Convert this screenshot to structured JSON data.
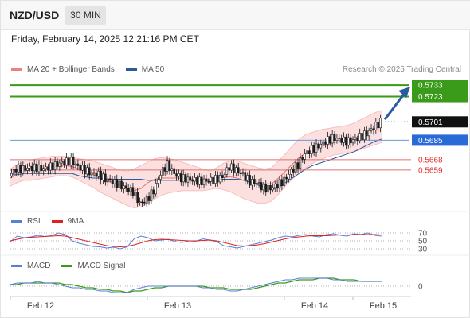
{
  "header": {
    "symbol": "NZD/USD",
    "timeframe": "30 MIN",
    "datetime": "Friday, February 14, 2025 12:21:16 PM CET",
    "credit": "Research © 2025 Trading Central"
  },
  "legends": {
    "main": [
      {
        "label": "MA 20 + Bollinger Bands",
        "color": "#f08080"
      },
      {
        "label": "MA 50",
        "color": "#2a5a9a"
      }
    ],
    "rsi": [
      {
        "label": "RSI",
        "color": "#5a7fd6"
      },
      {
        "label": "9MA",
        "color": "#e02020"
      }
    ],
    "macd": [
      {
        "label": "MACD",
        "color": "#5a7fd6"
      },
      {
        "label": "MACD Signal",
        "color": "#3a9a1a"
      }
    ]
  },
  "colors": {
    "resistance": "#3a9a1a",
    "pivot": "#6a9ad6",
    "support": "#e07070",
    "current": "#222222",
    "band_fill": "#fbd9d9",
    "candle": "#1a1a1a",
    "arrow": "#2a5aa0"
  },
  "chart_data": [
    {
      "type": "candlestick",
      "title": "NZD/USD 30 MIN",
      "x_tick_labels": [
        "Feb 12",
        "Feb 13",
        "Feb 14",
        "Feb 15"
      ],
      "price_range": [
        0.5625,
        0.574
      ],
      "levels": [
        {
          "kind": "resistance",
          "value": 0.5733,
          "label": "0.5733"
        },
        {
          "kind": "resistance",
          "value": 0.5723,
          "label": "0.5723"
        },
        {
          "kind": "current",
          "value": 0.5701,
          "label": "0.5701"
        },
        {
          "kind": "pivot",
          "value": 0.5685,
          "label": "0.5685"
        },
        {
          "kind": "support",
          "value": 0.5668,
          "label": "0.5668"
        },
        {
          "kind": "support",
          "value": 0.5659,
          "label": "0.5659"
        }
      ],
      "close_path": [
        0.5654,
        0.566,
        0.566,
        0.5661,
        0.5661,
        0.566,
        0.5662,
        0.5664,
        0.5666,
        0.5667,
        0.5662,
        0.5659,
        0.5656,
        0.5655,
        0.5651,
        0.5649,
        0.5646,
        0.5643,
        0.564,
        0.563,
        0.5633,
        0.5641,
        0.5656,
        0.5664,
        0.5656,
        0.5652,
        0.5651,
        0.565,
        0.5649,
        0.565,
        0.5651,
        0.5653,
        0.5662,
        0.5659,
        0.5655,
        0.5649,
        0.5648,
        0.5643,
        0.5643,
        0.5646,
        0.565,
        0.5658,
        0.5664,
        0.5673,
        0.5677,
        0.568,
        0.5684,
        0.5687,
        0.5686,
        0.5684,
        0.5685,
        0.5688,
        0.5691,
        0.5696,
        0.5701
      ],
      "ma50_path": [
        0.5655,
        0.5655,
        0.5656,
        0.5656,
        0.5656,
        0.5656,
        0.5656,
        0.5656,
        0.5656,
        0.5656,
        0.5654,
        0.5653,
        0.5652,
        0.5652,
        0.5651,
        0.5651,
        0.5651,
        0.5651,
        0.5651,
        0.5651,
        0.565,
        0.565,
        0.565,
        0.565,
        0.565,
        0.565,
        0.565,
        0.565,
        0.565,
        0.565,
        0.565,
        0.5651,
        0.5651,
        0.5651,
        0.565,
        0.5648,
        0.5646,
        0.5644,
        0.5642,
        0.5644,
        0.5648,
        0.5652,
        0.5656,
        0.566,
        0.5663,
        0.5665,
        0.5667,
        0.5669,
        0.5671,
        0.5673,
        0.5675,
        0.5678,
        0.5681,
        0.5684,
        0.5686
      ],
      "ma20_path": [
        0.5652,
        0.5656,
        0.5658,
        0.5659,
        0.566,
        0.5661,
        0.5662,
        0.5663,
        0.5663,
        0.5662,
        0.566,
        0.5658,
        0.5655,
        0.5653,
        0.565,
        0.5648,
        0.5645,
        0.5642,
        0.5641,
        0.5643,
        0.5648,
        0.5651,
        0.5652,
        0.5652,
        0.5652,
        0.5652,
        0.5651,
        0.5651,
        0.5651,
        0.5651,
        0.5652,
        0.5653,
        0.5653,
        0.5652,
        0.565,
        0.5648,
        0.5647,
        0.5647,
        0.5647,
        0.5652,
        0.5658,
        0.5664,
        0.567,
        0.5674,
        0.5677,
        0.5679,
        0.5681,
        0.5683,
        0.5684,
        0.5685,
        0.5687,
        0.5689,
        0.5692,
        0.5695,
        0.5697
      ],
      "bb_upper_path": [
        0.566,
        0.5664,
        0.5666,
        0.5668,
        0.5669,
        0.567,
        0.5671,
        0.5671,
        0.5671,
        0.567,
        0.5669,
        0.5668,
        0.5667,
        0.5665,
        0.5663,
        0.5661,
        0.5659,
        0.5658,
        0.566,
        0.5663,
        0.5666,
        0.5669,
        0.567,
        0.5669,
        0.5668,
        0.5666,
        0.5664,
        0.5662,
        0.566,
        0.5658,
        0.5661,
        0.5665,
        0.5667,
        0.5667,
        0.5665,
        0.5663,
        0.5661,
        0.566,
        0.5661,
        0.5667,
        0.5673,
        0.568,
        0.5686,
        0.569,
        0.5692,
        0.5694,
        0.5695,
        0.5696,
        0.5697,
        0.5698,
        0.57,
        0.5703,
        0.5706,
        0.5709,
        0.5711
      ],
      "bb_lower_path": [
        0.5645,
        0.5648,
        0.565,
        0.565,
        0.5651,
        0.5652,
        0.5653,
        0.5654,
        0.5654,
        0.5653,
        0.565,
        0.5647,
        0.5644,
        0.564,
        0.5637,
        0.5634,
        0.5631,
        0.5628,
        0.5626,
        0.5627,
        0.563,
        0.5634,
        0.5637,
        0.5639,
        0.564,
        0.5641,
        0.5641,
        0.5641,
        0.5641,
        0.5642,
        0.5643,
        0.5642,
        0.564,
        0.5637,
        0.5634,
        0.5632,
        0.563,
        0.563,
        0.5632,
        0.5638,
        0.5645,
        0.5651,
        0.5656,
        0.5661,
        0.5665,
        0.5668,
        0.567,
        0.5672,
        0.5673,
        0.5674,
        0.5675,
        0.5677,
        0.5679,
        0.5681,
        0.5683
      ],
      "forecast_target": 0.5733
    },
    {
      "type": "line",
      "title": "RSI",
      "ylim": [
        20,
        80
      ],
      "y_tick_labels": [
        "70",
        "50",
        "30"
      ],
      "series": [
        {
          "name": "RSI",
          "values": [
            48,
            62,
            58,
            60,
            64,
            61,
            63,
            70,
            66,
            50,
            44,
            40,
            36,
            35,
            32,
            34,
            30,
            35,
            55,
            62,
            58,
            50,
            52,
            54,
            48,
            46,
            50,
            49,
            55,
            52,
            48,
            38,
            35,
            32,
            36,
            40,
            44,
            48,
            52,
            58,
            62,
            60,
            64,
            66,
            62,
            60,
            66,
            68,
            64,
            62,
            68,
            66,
            70,
            64,
            62
          ]
        },
        {
          "name": "9MA",
          "values": [
            50,
            54,
            57,
            59,
            60,
            61,
            62,
            63,
            62,
            58,
            54,
            50,
            46,
            42,
            38,
            36,
            35,
            36,
            40,
            45,
            50,
            53,
            54,
            53,
            52,
            51,
            50,
            50,
            51,
            52,
            50,
            46,
            42,
            38,
            37,
            38,
            40,
            43,
            47,
            51,
            55,
            58,
            60,
            62,
            63,
            63,
            63,
            64,
            65,
            65,
            66,
            66,
            66,
            66,
            65
          ]
        }
      ]
    },
    {
      "type": "line",
      "title": "MACD",
      "ylim": [
        -0.0006,
        0.0008
      ],
      "y_tick_labels": [
        "0"
      ],
      "series": [
        {
          "name": "MACD",
          "values": [
            0.0001,
            0.0002,
            0.0002,
            0.0002,
            0.0003,
            0.0002,
            0.0002,
            0.0001,
            0.0,
            -0.0001,
            -0.0001,
            -0.0002,
            -0.0002,
            -0.0003,
            -0.0003,
            -0.0004,
            -0.0004,
            -0.0004,
            -0.0002,
            -0.0001,
            0.0,
            0.0,
            0.0,
            0.0,
            0.0,
            0.0,
            0.0,
            0.0,
            -0.0001,
            -0.0001,
            -0.0002,
            -0.0002,
            -0.0003,
            -0.0003,
            -0.0002,
            -0.0001,
            0.0,
            0.0001,
            0.0002,
            0.0003,
            0.0004,
            0.0004,
            0.0005,
            0.0005,
            0.0005,
            0.0005,
            0.0005,
            0.0004,
            0.0004,
            0.0003,
            0.0003,
            0.0003,
            0.0003,
            0.0003,
            0.0003
          ]
        },
        {
          "name": "MACD Signal",
          "values": [
            0.0001,
            0.0001,
            0.0002,
            0.0002,
            0.0002,
            0.0002,
            0.0002,
            0.0002,
            0.0001,
            0.0001,
            0.0,
            -0.0001,
            -0.0001,
            -0.0002,
            -0.0002,
            -0.0003,
            -0.0003,
            -0.0004,
            -0.0003,
            -0.0003,
            -0.0002,
            -0.0001,
            -0.0001,
            0.0,
            0.0,
            0.0,
            0.0,
            0.0,
            0.0,
            -0.0001,
            -0.0001,
            -0.0001,
            -0.0002,
            -0.0002,
            -0.0002,
            -0.0002,
            -0.0001,
            0.0,
            0.0001,
            0.0002,
            0.0002,
            0.0003,
            0.0004,
            0.0004,
            0.0004,
            0.0005,
            0.0005,
            0.0005,
            0.0004,
            0.0004,
            0.0004,
            0.0003,
            0.0003,
            0.0003,
            0.0003
          ]
        }
      ]
    }
  ]
}
